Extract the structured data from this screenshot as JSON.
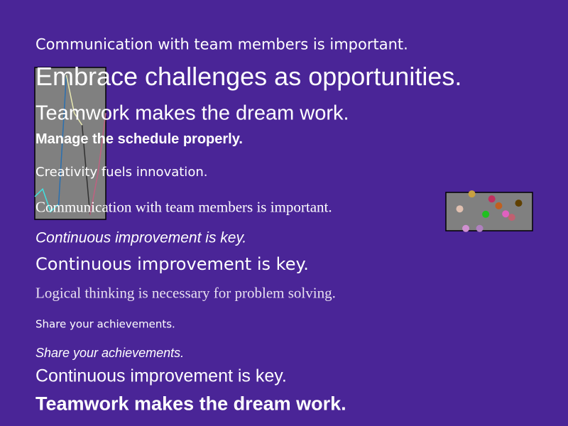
{
  "lines": [
    "Communication with team members is important.",
    "Embrace challenges as opportunities.",
    "Teamwork makes the dream work.",
    "Manage the schedule properly.",
    "Creativity fuels innovation.",
    "Communication with team members is important.",
    "Continuous improvement is key.",
    "Continuous improvement is key.",
    "Logical thinking is necessary for problem solving.",
    "Share your achievements.",
    "Share your achievements.",
    "Continuous improvement is key.",
    "Teamwork makes the dream work."
  ],
  "chart_data": [
    {
      "type": "line",
      "x": [
        0,
        1,
        2,
        3,
        4,
        5,
        6,
        7,
        8,
        9
      ],
      "xlim": [
        0,
        9
      ],
      "ylim": [
        0,
        100
      ],
      "series": [
        {
          "color": "#40e0e0",
          "values": [
            15,
            20,
            5,
            10,
            null,
            null,
            null,
            null,
            null,
            null
          ]
        },
        {
          "color": "#2a70b0",
          "values": [
            null,
            null,
            null,
            8,
            95,
            null,
            null,
            null,
            null,
            null
          ]
        },
        {
          "color": "#e8e8b0",
          "values": [
            null,
            null,
            null,
            null,
            95,
            70,
            62,
            null,
            null,
            null
          ]
        },
        {
          "color": "#303030",
          "values": [
            null,
            null,
            null,
            null,
            null,
            null,
            62,
            3,
            null,
            null
          ]
        },
        {
          "color": "#c06080",
          "values": [
            null,
            null,
            null,
            null,
            null,
            null,
            null,
            3,
            30,
            70
          ]
        }
      ]
    },
    {
      "type": "scatter",
      "xlim": [
        0,
        10
      ],
      "ylim": [
        0,
        10
      ],
      "x": [
        3.0,
        5.3,
        8.4,
        6.1,
        1.6,
        4.6,
        6.9,
        7.6,
        2.3,
        3.9
      ],
      "values": [
        9.6,
        8.3,
        7.2,
        6.5,
        5.7,
        4.3,
        4.4,
        3.5,
        0.6,
        0.6
      ],
      "colors": [
        "#c8a040",
        "#c03060",
        "#604000",
        "#c06020",
        "#e0c0b0",
        "#20c020",
        "#e060c0",
        "#c06070",
        "#d090d0",
        "#b080c0"
      ]
    }
  ]
}
